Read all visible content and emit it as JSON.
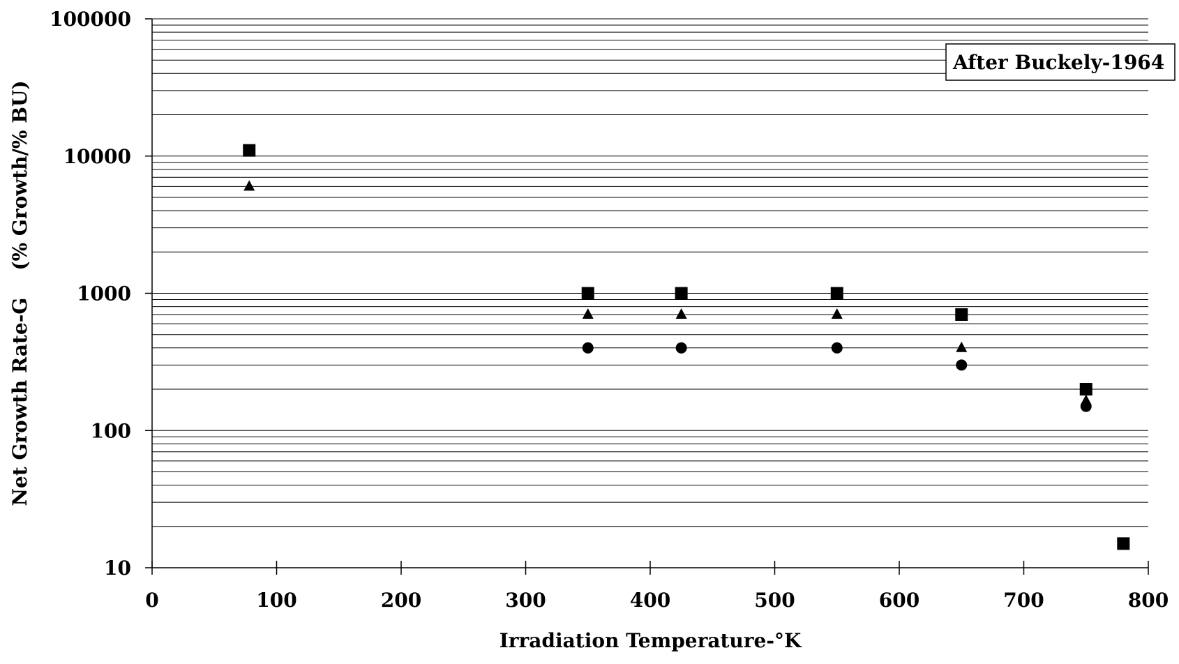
{
  "chart_data": {
    "type": "scatter",
    "title": "",
    "xlabel": "Irradiation Temperature-°K",
    "ylabel": "Net Growth Rate-G    (% Growth/% BU)",
    "xlim": [
      0,
      800
    ],
    "ylim": [
      10,
      100000
    ],
    "yscale": "log",
    "x_ticks": [
      "0",
      "100",
      "200",
      "300",
      "400",
      "500",
      "600",
      "700",
      "800"
    ],
    "y_ticks": [
      "10",
      "100",
      "1000",
      "10000",
      "100000"
    ],
    "grid": "horizontal minor log gridlines",
    "legend": "none",
    "annotation": "After Buckely-1964",
    "series": [
      {
        "marker": "square",
        "points": [
          [
            78,
            11000
          ],
          [
            350,
            1000
          ],
          [
            425,
            1000
          ],
          [
            550,
            1000
          ],
          [
            650,
            700
          ],
          [
            750,
            200
          ],
          [
            780,
            15
          ]
        ]
      },
      {
        "marker": "triangle",
        "points": [
          [
            78,
            6000
          ],
          [
            350,
            700
          ],
          [
            425,
            700
          ],
          [
            550,
            700
          ],
          [
            650,
            400
          ],
          [
            750,
            165
          ]
        ]
      },
      {
        "marker": "circle",
        "points": [
          [
            350,
            400
          ],
          [
            425,
            400
          ],
          [
            550,
            400
          ],
          [
            650,
            300
          ],
          [
            750,
            150
          ]
        ]
      }
    ],
    "colors": {
      "marker": "#000000",
      "grid": "#000000"
    }
  }
}
